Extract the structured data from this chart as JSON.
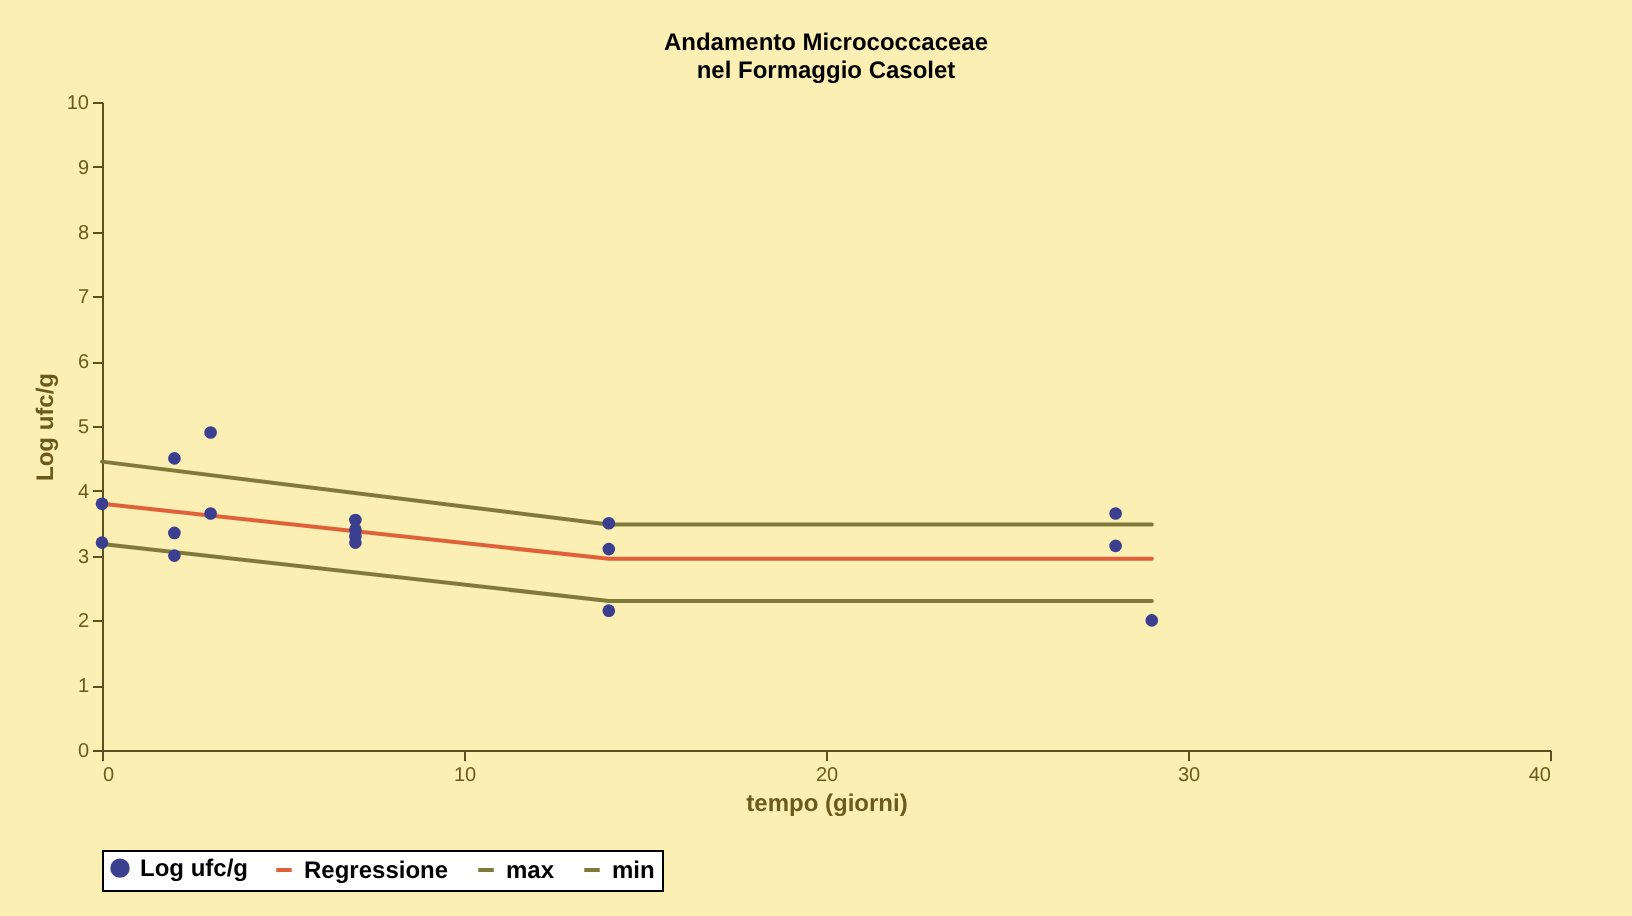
{
  "chart_data": {
    "type": "scatter",
    "title": "Andamento Micrococcaceae\nnel Formaggio Casolet",
    "xlabel": "tempo (giorni)",
    "ylabel": "Log ufc/g",
    "xlim": [
      0,
      40
    ],
    "xticks": [
      0,
      10,
      20,
      30,
      40
    ],
    "ylim": [
      0,
      10
    ],
    "yticks": [
      0,
      1,
      2,
      3,
      4,
      5,
      6,
      7,
      8,
      9,
      10
    ],
    "grid": false,
    "legend": "bottom",
    "series": [
      {
        "name": "Log ufc/g",
        "type": "scatter",
        "marker": "circle",
        "color": "#3a3f8f",
        "x": [
          0,
          0,
          2,
          2,
          2,
          3,
          3,
          7,
          7,
          7,
          7,
          14,
          14,
          14,
          28,
          28,
          29
        ],
        "values": [
          3.8,
          3.2,
          4.5,
          3.35,
          3.0,
          4.9,
          3.65,
          3.55,
          3.4,
          3.3,
          3.2,
          3.5,
          3.1,
          2.15,
          3.65,
          3.15,
          2.0
        ]
      },
      {
        "name": "Regressione",
        "type": "line",
        "line_style": "solid",
        "color": "#e0603a",
        "x": [
          0,
          14,
          29
        ],
        "values": [
          3.8,
          2.95,
          2.95
        ]
      },
      {
        "name": "max",
        "type": "line",
        "line_style": "solid",
        "color": "#7f7a3a",
        "x": [
          0,
          14,
          29
        ],
        "values": [
          4.45,
          3.48,
          3.48
        ]
      },
      {
        "name": "min",
        "type": "line",
        "line_style": "solid",
        "color": "#7f7a3a",
        "x": [
          0,
          14,
          29
        ],
        "values": [
          3.18,
          2.3,
          2.3
        ]
      }
    ]
  }
}
